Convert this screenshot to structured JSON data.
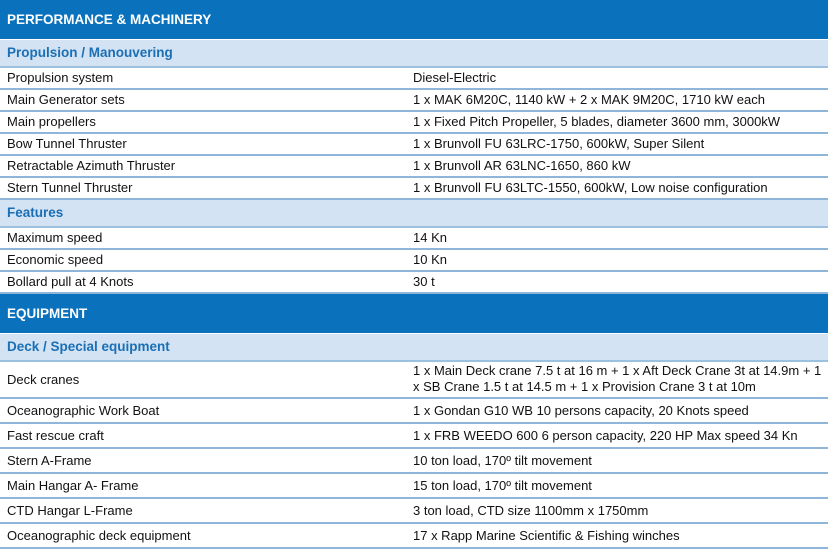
{
  "sections": [
    {
      "title": "PERFORMANCE & MACHINERY",
      "groups": [
        {
          "title": "Propulsion / Manouvering",
          "rows": [
            [
              "Propulsion system",
              "Diesel-Electric"
            ],
            [
              "Main Generator sets",
              "1 x MAK 6M20C, 1140 kW + 2 x MAK 9M20C, 1710 kW each"
            ],
            [
              "Main propellers",
              "1 x  Fixed Pitch Propeller, 5 blades, diameter 3600 mm, 3000kW"
            ],
            [
              "Bow Tunnel Thruster",
              "1 x Brunvoll FU 63LRC-1750, 600kW, Super Silent"
            ],
            [
              "Retractable Azimuth Thruster",
              "1 x Brunvoll AR 63LNC-1650, 860 kW"
            ],
            [
              "Stern Tunnel Thruster",
              "1 x Brunvoll FU 63LTC-1550, 600kW, Low noise configuration"
            ]
          ]
        },
        {
          "title": "Features",
          "rows": [
            [
              "Maximum speed",
              "14 Kn"
            ],
            [
              "Economic speed",
              "10 Kn"
            ],
            [
              "Bollard pull at 4 Knots",
              "30 t"
            ]
          ]
        }
      ]
    },
    {
      "title": "EQUIPMENT",
      "groups": [
        {
          "title": "Deck / Special equipment",
          "rows": [
            [
              "Deck cranes",
              "1 x Main Deck crane 7.5 t at 16 m +  1 x Aft Deck Crane 3t at 14.9m + 1 x SB Crane 1.5 t at 14.5 m + 1 x Provision Crane 3 t at 10m"
            ],
            [
              "Oceanographic Work Boat",
              "1 x Gondan G10 WB  10 persons capacity, 20 Knots speed"
            ],
            [
              "Fast rescue craft",
              "1 x FRB WEEDO 600 6 person capacity, 220 HP Max speed 34 Kn"
            ],
            [
              "Stern A-Frame",
              "10 ton load, 170º tilt movement"
            ],
            [
              "Main Hangar A- Frame",
              "15 ton load, 170º tilt movement"
            ],
            [
              "CTD Hangar L-Frame",
              " 3 ton load, CTD size 1100mm x 1750mm"
            ],
            [
              "Oceanographic deck equipment",
              "17 x Rapp Marine Scientific & Fishing winches"
            ]
          ]
        }
      ]
    }
  ],
  "colors": {
    "section": "#0a72bd",
    "subsection": "#d3e3f3",
    "subsection_text": "#1a6fb5",
    "rule": "#8fb6da"
  }
}
